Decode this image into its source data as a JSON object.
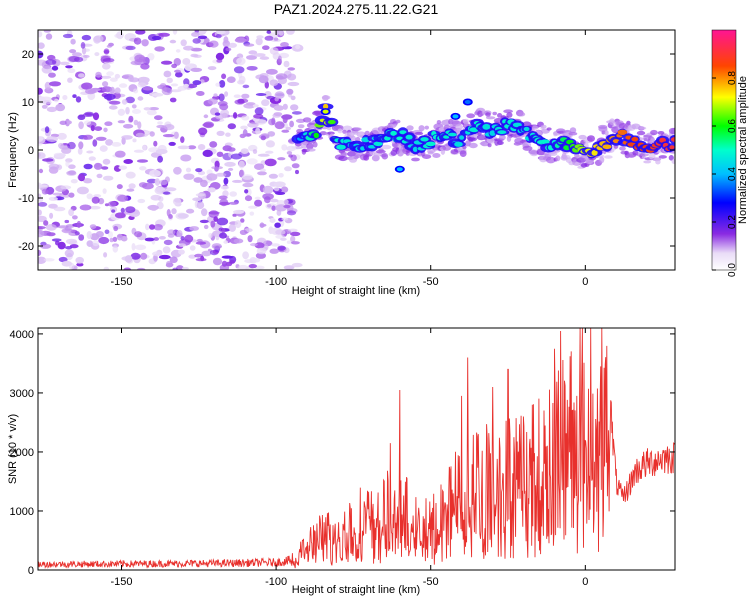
{
  "title": "PAZ1.2024.275.11.22.G21",
  "chart_data": [
    {
      "type": "heatmap",
      "title": "PAZ1.2024.275.11.22.G21",
      "xlabel": "Height of straight line (km)",
      "ylabel": "Frequency (Hz)",
      "xlim": [
        -177,
        29
      ],
      "ylim": [
        -25,
        25
      ],
      "xticks": [
        -150,
        -100,
        -50,
        0
      ],
      "yticks": [
        20,
        10,
        0,
        -10,
        -20
      ],
      "xtick_labels": [
        "-150",
        "-100",
        "-50",
        "0"
      ],
      "ytick_labels": [
        "20",
        "10",
        "0",
        "-10",
        "-20"
      ],
      "colorbar": {
        "label": "Normalized spectral amplitude",
        "range": [
          0,
          1
        ],
        "ticks": [
          0,
          0.2,
          0.4,
          0.6,
          0.8
        ],
        "tick_labels": [
          "0.0",
          "0.2",
          "0.4",
          "0.6",
          "0.8"
        ],
        "colormap": [
          "#ffffff",
          "#8a2be2",
          "#0000ff",
          "#00ffff",
          "#00ff00",
          "#ffff00",
          "#ff0000",
          "#ff1493"
        ]
      },
      "noise_region_x": [
        -177,
        -93
      ],
      "ridge": {
        "x": [
          -93,
          -88,
          -84,
          -80,
          -75,
          -70,
          -65,
          -60,
          -55,
          -50,
          -45,
          -40,
          -35,
          -30,
          -25,
          -20,
          -15,
          -10,
          -5,
          0,
          5,
          10,
          15,
          20,
          25,
          29
        ],
        "frequency": [
          3,
          3,
          8,
          2,
          1,
          1,
          2,
          3,
          1,
          2,
          3,
          2,
          5,
          4,
          5,
          4,
          2,
          1,
          1,
          -1,
          1,
          3,
          2,
          1,
          1,
          1
        ],
        "amplitude": [
          0.35,
          0.55,
          0.75,
          0.5,
          0.45,
          0.45,
          0.5,
          0.5,
          0.45,
          0.5,
          0.5,
          0.45,
          0.5,
          0.45,
          0.5,
          0.45,
          0.5,
          0.5,
          0.6,
          0.7,
          0.75,
          0.8,
          0.85,
          0.85,
          0.9,
          0.9
        ]
      }
    },
    {
      "type": "line",
      "xlabel": "Height of straight line (km)",
      "ylabel": "SNR (10 * v/v)",
      "xlim": [
        -177,
        29
      ],
      "ylim": [
        0,
        4100
      ],
      "xticks": [
        -150,
        -100,
        -50,
        0
      ],
      "yticks": [
        0,
        1000,
        2000,
        3000,
        4000
      ],
      "xtick_labels": [
        "-150",
        "-100",
        "-50",
        "0"
      ],
      "ytick_labels": [
        "0",
        "1000",
        "2000",
        "3000",
        "4000"
      ],
      "line_color": "#e8302c",
      "envelope": {
        "x": [
          -177,
          -150,
          -120,
          -100,
          -95,
          -90,
          -85,
          -80,
          -75,
          -70,
          -65,
          -60,
          -55,
          -50,
          -45,
          -40,
          -35,
          -30,
          -25,
          -20,
          -15,
          -10,
          -5,
          0,
          5,
          8,
          10,
          12,
          14,
          16,
          18,
          20,
          25,
          29
        ],
        "snr": [
          120,
          130,
          140,
          160,
          200,
          450,
          700,
          650,
          900,
          1000,
          1100,
          1200,
          900,
          800,
          1200,
          1500,
          1700,
          1700,
          1800,
          1900,
          2100,
          2300,
          2700,
          2900,
          3100,
          2800,
          1500,
          1200,
          1400,
          1650,
          1750,
          1800,
          1900,
          1900
        ]
      },
      "spikes": [
        {
          "x": -60,
          "snr": 3050
        },
        {
          "x": -63,
          "snr": 2150
        },
        {
          "x": -40,
          "snr": 2950
        },
        {
          "x": -38,
          "snr": 3600
        },
        {
          "x": -30,
          "snr": 3100
        },
        {
          "x": -25,
          "snr": 3400
        },
        {
          "x": -20,
          "snr": 2600
        },
        {
          "x": -10,
          "snr": 3750
        },
        {
          "x": -8,
          "snr": 4050
        },
        {
          "x": 5,
          "snr": 3450
        }
      ]
    }
  ]
}
